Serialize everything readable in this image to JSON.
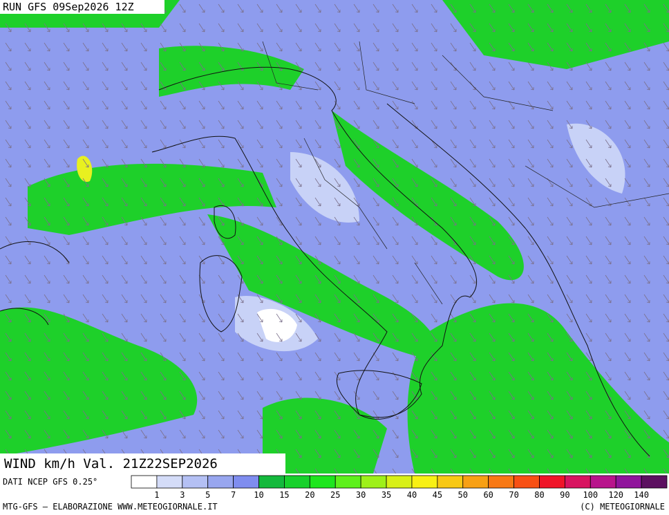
{
  "header": {
    "run": "RUN GFS 09Sep2026 12Z",
    "field": "WIND km/h Val. 21Z22SEP2026",
    "source": "DATI NCEP GFS 0.25°"
  },
  "legend": {
    "levels": [
      "1",
      "3",
      "5",
      "7",
      "10",
      "15",
      "20",
      "25",
      "30",
      "35",
      "40",
      "45",
      "50",
      "60",
      "70",
      "80",
      "90",
      "100",
      "120",
      "140"
    ],
    "colors": [
      "#ffffff",
      "#d4dcf8",
      "#b4c0f4",
      "#98a6ef",
      "#7f8def",
      "#14b93c",
      "#18d12c",
      "#1ee61e",
      "#5ef01c",
      "#9ef01a",
      "#d8f018",
      "#f8f014",
      "#f8c814",
      "#f8a014",
      "#f87814",
      "#f85014",
      "#f01428",
      "#d81460",
      "#b8148c",
      "#90149c",
      "#5c1060"
    ]
  },
  "footer": {
    "left": "MTG-GFS — ELABORAZIONE WWW.METEOGIORNALE.IT",
    "right": "(C) METEOGIORNALE"
  }
}
